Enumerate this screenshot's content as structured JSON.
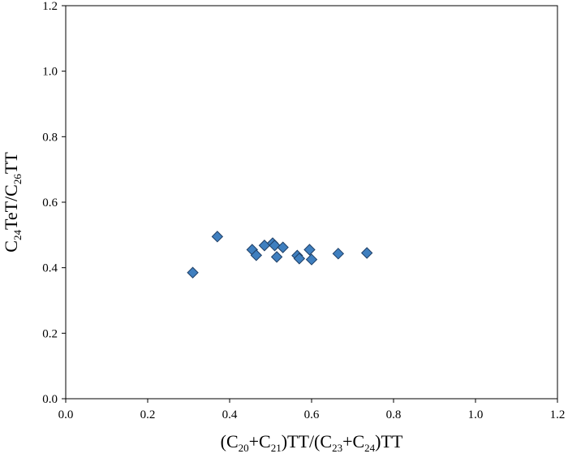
{
  "chart_data": {
    "type": "scatter",
    "title": "",
    "xlabel": {
      "parts": [
        {
          "t": "(C"
        },
        {
          "t": "20",
          "sub": true
        },
        {
          "t": "+C"
        },
        {
          "t": "21",
          "sub": true
        },
        {
          "t": ")TT/(C"
        },
        {
          "t": "23",
          "sub": true
        },
        {
          "t": "+C"
        },
        {
          "t": "24",
          "sub": true
        },
        {
          "t": ")TT"
        }
      ]
    },
    "ylabel": {
      "parts": [
        {
          "t": "C"
        },
        {
          "t": "24",
          "sub": true
        },
        {
          "t": "TeT/C"
        },
        {
          "t": "26",
          "sub": true
        },
        {
          "t": "TT"
        }
      ]
    },
    "xlim": [
      0.0,
      1.2
    ],
    "ylim": [
      0.0,
      1.2
    ],
    "xticks": [
      "0.0",
      "0.2",
      "0.4",
      "0.6",
      "0.8",
      "1.0",
      "1.2"
    ],
    "yticks": [
      "0.0",
      "0.2",
      "0.4",
      "0.6",
      "0.8",
      "1.0",
      "1.2"
    ],
    "grid": false,
    "legend": "none",
    "marker": "diamond",
    "marker_color": "#3f7fbf",
    "marker_edge": "#1f3f66",
    "points": [
      {
        "x": 0.31,
        "y": 0.385
      },
      {
        "x": 0.37,
        "y": 0.495
      },
      {
        "x": 0.455,
        "y": 0.455
      },
      {
        "x": 0.465,
        "y": 0.438
      },
      {
        "x": 0.485,
        "y": 0.468
      },
      {
        "x": 0.505,
        "y": 0.475
      },
      {
        "x": 0.51,
        "y": 0.468
      },
      {
        "x": 0.515,
        "y": 0.433
      },
      {
        "x": 0.53,
        "y": 0.462
      },
      {
        "x": 0.565,
        "y": 0.437
      },
      {
        "x": 0.57,
        "y": 0.428
      },
      {
        "x": 0.595,
        "y": 0.455
      },
      {
        "x": 0.6,
        "y": 0.425
      },
      {
        "x": 0.665,
        "y": 0.443
      },
      {
        "x": 0.735,
        "y": 0.445
      }
    ]
  }
}
